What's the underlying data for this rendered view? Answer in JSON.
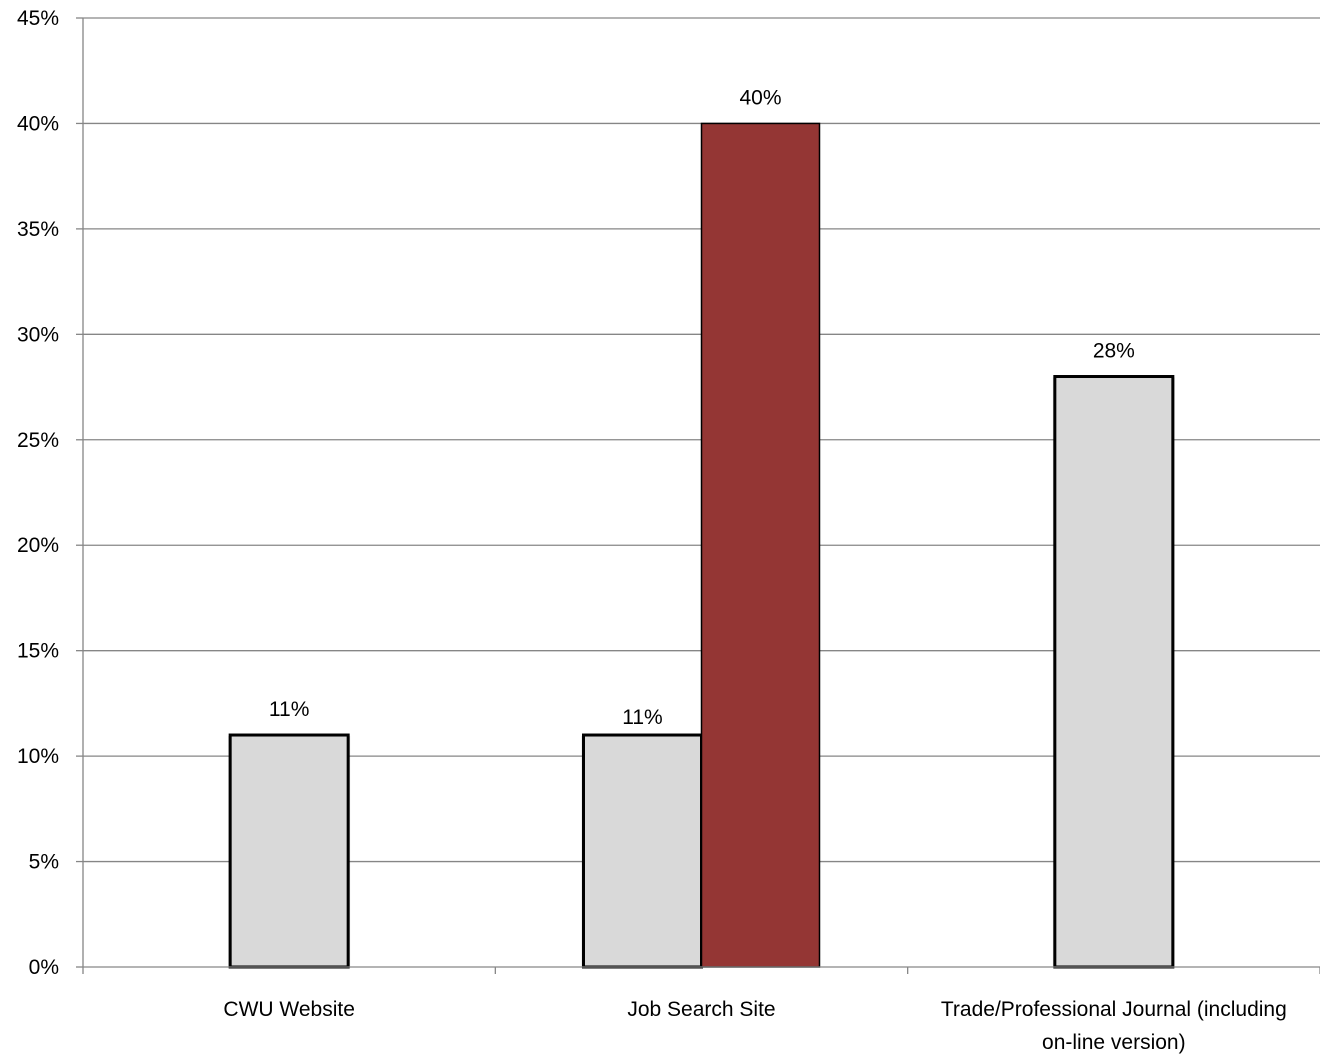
{
  "chart_data": {
    "type": "bar",
    "categories": [
      [
        "CWU Website"
      ],
      [
        "Job Search Site"
      ],
      [
        "Trade/Professional Journal (including",
        "on-line version)"
      ]
    ],
    "series": [
      {
        "values": [
          11,
          11,
          28
        ],
        "data_labels": [
          "11%",
          "11%",
          "28%"
        ],
        "color": "#d9d9d9"
      },
      {
        "values": [
          null,
          40,
          null
        ],
        "data_labels": [
          null,
          "40%",
          null
        ],
        "color": "#943634"
      }
    ],
    "ylim": [
      0,
      45
    ],
    "y_ticks": [
      0,
      5,
      10,
      15,
      20,
      25,
      30,
      35,
      40,
      45
    ],
    "y_tick_labels": [
      "0%",
      "5%",
      "10%",
      "15%",
      "20%",
      "25%",
      "30%",
      "35%",
      "40%",
      "45%"
    ],
    "grid": true,
    "legend": "none",
    "title": "",
    "xlabel": "",
    "ylabel": ""
  }
}
